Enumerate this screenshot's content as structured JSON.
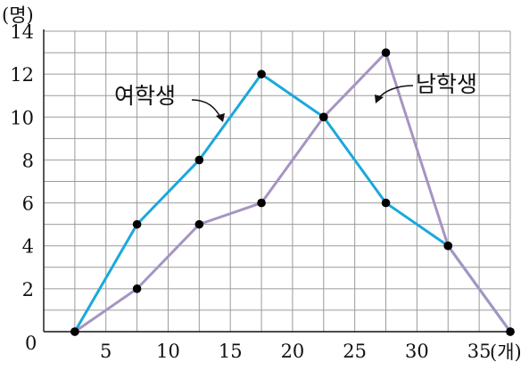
{
  "chart_data": {
    "type": "line",
    "y_unit": "(명)",
    "x_unit": "(개)",
    "origin_label": "0",
    "x_ticks": [
      5,
      10,
      15,
      20,
      25,
      30,
      35
    ],
    "y_ticks": [
      2,
      4,
      6,
      8,
      10,
      12,
      14
    ],
    "xlim": [
      0,
      37.5
    ],
    "ylim": [
      0,
      14
    ],
    "grid": true,
    "x_gridlines": [
      0,
      2.5,
      5,
      7.5,
      10,
      12.5,
      15,
      17.5,
      20,
      22.5,
      25,
      27.5,
      30,
      32.5,
      35,
      37.5
    ],
    "y_gridlines": [
      0,
      1,
      2,
      3,
      4,
      5,
      6,
      7,
      8,
      9,
      10,
      11,
      12,
      13,
      14
    ],
    "series": [
      {
        "name": "여학생",
        "color": "#1ba8dc",
        "x": [
          2.5,
          7.5,
          12.5,
          17.5,
          22.5,
          27.5,
          32.5,
          37.5
        ],
        "y": [
          0,
          5,
          8,
          12,
          10,
          6,
          4,
          0
        ]
      },
      {
        "name": "남학생",
        "color": "#a694c2",
        "x": [
          2.5,
          7.5,
          12.5,
          17.5,
          22.5,
          27.5,
          32.5,
          37.5
        ],
        "y": [
          0,
          2,
          5,
          6,
          10,
          13,
          4,
          0
        ]
      }
    ]
  }
}
